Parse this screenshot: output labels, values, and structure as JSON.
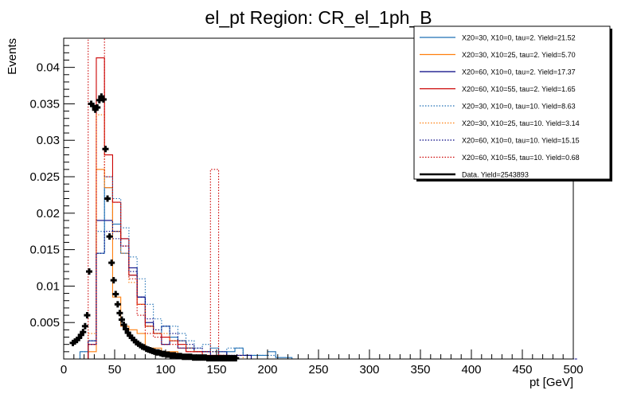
{
  "chart_data": {
    "type": "line",
    "title": "el_pt Region: CR_el_1ph_B",
    "xlabel": "pt [GeV]",
    "ylabel": "Events",
    "xlim": [
      0,
      500
    ],
    "ylim": [
      0,
      0.044
    ],
    "x_ticks": [
      0,
      50,
      100,
      150,
      200,
      250,
      300,
      350,
      400,
      450,
      500
    ],
    "x_tick_labels": [
      "0",
      "50",
      "100",
      "150",
      "200",
      "250",
      "300",
      "350",
      "400",
      "450",
      "500"
    ],
    "y_ticks": [
      0.005,
      0.01,
      0.015,
      0.02,
      0.025,
      0.03,
      0.035,
      0.04
    ],
    "y_tick_labels": [
      "0.005",
      "0.01",
      "0.015",
      "0.02",
      "0.025",
      "0.03",
      "0.035",
      "0.04"
    ],
    "bin_width": 8,
    "legend_position": "top-right",
    "series": [
      {
        "name": "X20=30, X10=0, tau=2. Yield=21.52",
        "color": "#1f6fb4",
        "style": "solid",
        "values": [
          0,
          0,
          0.001,
          0.0025,
          0.0145,
          0.0235,
          0.0185,
          0.0145,
          0.0115,
          0.0085,
          0.0045,
          0.0035,
          0.0045,
          0.003,
          0.0025,
          0.0015,
          0.001,
          0.001,
          0.0015,
          0.0005,
          0.001,
          0.0015,
          0.0005,
          0.0005,
          0.0005,
          0.001,
          0.0002,
          0.0002,
          0,
          0,
          0,
          0,
          0,
          0,
          0,
          0,
          0,
          0,
          0,
          0,
          0,
          0,
          0,
          0,
          0,
          0,
          0,
          0,
          0,
          0,
          0,
          0,
          0,
          0,
          0,
          0,
          0,
          0,
          0,
          0,
          0,
          0,
          0
        ]
      },
      {
        "name": "X20=30, X10=25, tau=2. Yield=5.70",
        "color": "#ff7f0e",
        "style": "solid",
        "values": [
          0,
          0,
          0,
          0.001,
          0.026,
          0.0235,
          0.0085,
          0.0045,
          0.004,
          0.0035,
          0.0015,
          0.0015,
          0.001,
          0.001,
          0.0005,
          0.0005,
          0.0005,
          0.0005,
          0,
          0,
          0,
          0,
          0,
          0,
          0,
          0,
          0,
          0,
          0,
          0,
          0,
          0,
          0,
          0,
          0,
          0,
          0,
          0,
          0,
          0,
          0,
          0,
          0,
          0,
          0,
          0,
          0,
          0,
          0,
          0,
          0,
          0,
          0,
          0,
          0,
          0,
          0,
          0,
          0,
          0,
          0,
          0,
          0
        ]
      },
      {
        "name": "X20=60, X10=0, tau=2. Yield=17.37",
        "color": "#000080",
        "style": "solid",
        "values": [
          0,
          0,
          0,
          0.0025,
          0.019,
          0.019,
          0.0175,
          0.0165,
          0.0125,
          0.0085,
          0.005,
          0.0035,
          0.002,
          0.0025,
          0.0015,
          0.0015,
          0.001,
          0.001,
          0.0005,
          0.001,
          0.0005,
          0.0005,
          0.0005,
          0,
          0,
          0,
          0,
          0,
          0,
          0,
          0,
          0,
          0,
          0,
          0,
          0,
          0,
          0,
          0,
          0,
          0,
          0,
          0,
          0,
          0,
          0,
          0,
          0,
          0,
          0,
          0,
          0,
          0,
          0,
          0,
          0,
          0,
          0,
          0,
          0,
          0,
          0,
          0
        ]
      },
      {
        "name": "X20=60, X10=55, tau=2. Yield=1.65",
        "color": "#cc0000",
        "style": "solid",
        "values": [
          0,
          0,
          0,
          0.002,
          0.0413,
          0.028,
          0.0215,
          0.0165,
          0.0115,
          0.0075,
          0.0045,
          0.0035,
          0.003,
          0.0025,
          0.002,
          0.001,
          0.001,
          0.0005,
          0.0005,
          0.0005,
          0,
          0,
          0,
          0,
          0,
          0,
          0,
          0,
          0,
          0,
          0,
          0,
          0,
          0,
          0,
          0,
          0,
          0,
          0,
          0,
          0,
          0,
          0,
          0,
          0,
          0,
          0,
          0,
          0,
          0,
          0,
          0,
          0,
          0,
          0,
          0,
          0,
          0,
          0,
          0,
          0,
          0,
          0
        ]
      },
      {
        "name": "X20=30, X10=0, tau=10. Yield=8.63",
        "color": "#1f6fb4",
        "style": "dotted",
        "values": [
          0,
          0,
          0.001,
          0.0025,
          0.0175,
          0.025,
          0.022,
          0.018,
          0.014,
          0.011,
          0.0075,
          0.0055,
          0.0045,
          0.0045,
          0.0035,
          0.0025,
          0.0015,
          0.002,
          0.001,
          0.001,
          0.0015,
          0.0015,
          0.0005,
          0.0005,
          0.0005,
          0.0005,
          0,
          0,
          0,
          0,
          0,
          0,
          0,
          0,
          0,
          0,
          0,
          0,
          0,
          0,
          0,
          0,
          0,
          0,
          0,
          0,
          0,
          0,
          0,
          0,
          0,
          0,
          0,
          0,
          0,
          0,
          0,
          0,
          0,
          0,
          0,
          0,
          0
        ]
      },
      {
        "name": "X20=30, X10=25, tau=10. Yield=3.14",
        "color": "#ff7f0e",
        "style": "dotted",
        "values": [
          0,
          0,
          0,
          0.0035,
          0.0335,
          0.0235,
          0.0175,
          0.0145,
          0.0105,
          0.0075,
          0.0045,
          0.0035,
          0.0035,
          0.0025,
          0.0025,
          0.0015,
          0.001,
          0.001,
          0.001,
          0.0005,
          0.0005,
          0.0005,
          0,
          0,
          0,
          0,
          0,
          0,
          0,
          0,
          0,
          0,
          0,
          0,
          0,
          0,
          0,
          0,
          0,
          0,
          0,
          0,
          0,
          0,
          0,
          0,
          0,
          0,
          0,
          0,
          0,
          0,
          0,
          0,
          0,
          0,
          0,
          0,
          0,
          0,
          0,
          0,
          0
        ]
      },
      {
        "name": "X20=60, X10=0, tau=10. Yield=15.15",
        "color": "#000080",
        "style": "dotted",
        "values": [
          0,
          0,
          0,
          0.002,
          0.0145,
          0.0175,
          0.0165,
          0.0155,
          0.012,
          0.0085,
          0.0055,
          0.004,
          0.0045,
          0.0035,
          0.0025,
          0.002,
          0.0015,
          0.001,
          0.001,
          0.0005,
          0.0005,
          0.0005,
          0.0005,
          0,
          0,
          0,
          0,
          0,
          0,
          0,
          0,
          0,
          0,
          0,
          0,
          0,
          0,
          0,
          0,
          0,
          0,
          0,
          0,
          0,
          0,
          0,
          0,
          0,
          0,
          0,
          0,
          0,
          0,
          0,
          0,
          0,
          0,
          0,
          0,
          0,
          0,
          0,
          0,
          0
        ]
      },
      {
        "name": "X20=60, X10=55, tau=10. Yield=0.68",
        "color": "#cc0000",
        "style": "dotted",
        "values": [
          0,
          0,
          0,
          0.044,
          0.044,
          0.025,
          0.0215,
          0.0155,
          0.011,
          0.006,
          0.0035,
          0.003,
          0.002,
          0.002,
          0.0015,
          0.001,
          0.001,
          0.001,
          0.026,
          0.0005,
          0,
          0,
          0,
          0,
          0,
          0,
          0,
          0,
          0,
          0,
          0,
          0,
          0,
          0,
          0,
          0,
          0,
          0,
          0,
          0,
          0,
          0,
          0,
          0,
          0,
          0,
          0,
          0,
          0,
          0,
          0,
          0,
          0,
          0,
          0,
          0,
          0,
          0,
          0,
          0,
          0,
          0,
          0
        ]
      }
    ],
    "data_points": {
      "name": "Data. Yield=2543893",
      "color": "#000000",
      "x": [
        9,
        11,
        13,
        15,
        17,
        19,
        21,
        23,
        25,
        27,
        29,
        31,
        33,
        35,
        37,
        39,
        41,
        43,
        45,
        47,
        49,
        51,
        53,
        55,
        57,
        59,
        61,
        63,
        65,
        67,
        69,
        71,
        73,
        75,
        77,
        79,
        81,
        83,
        85,
        87,
        89,
        91,
        93,
        95,
        97,
        99,
        101,
        103,
        105,
        107,
        109,
        111,
        113,
        115,
        117,
        119,
        121,
        123,
        125,
        127,
        129,
        131,
        133,
        135,
        137,
        139,
        141,
        143,
        145,
        147,
        149,
        151,
        153,
        155,
        157,
        159,
        161,
        163,
        165,
        167,
        169
      ],
      "y": [
        0.0022,
        0.0024,
        0.0026,
        0.0029,
        0.0033,
        0.0037,
        0.0045,
        0.006,
        0.012,
        0.035,
        0.0347,
        0.0342,
        0.0345,
        0.0355,
        0.036,
        0.0356,
        0.0288,
        0.022,
        0.0168,
        0.0132,
        0.0108,
        0.0089,
        0.0075,
        0.0063,
        0.0054,
        0.0047,
        0.0041,
        0.0036,
        0.0032,
        0.0029,
        0.0026,
        0.0023,
        0.0021,
        0.0019,
        0.0017,
        0.0016,
        0.0014,
        0.0013,
        0.0012,
        0.0011,
        0.001,
        0.0009,
        0.0009,
        0.0008,
        0.0007,
        0.0007,
        0.0006,
        0.0006,
        0.0005,
        0.0005,
        0.0005,
        0.0004,
        0.0004,
        0.0004,
        0.0003,
        0.0003,
        0.0003,
        0.0003,
        0.0003,
        0.0002,
        0.0002,
        0.0002,
        0.0002,
        0.0002,
        0.0002,
        0.0002,
        0.0001,
        0.0001,
        0.0001,
        0.0001,
        0.0001,
        0.0001,
        0.0001,
        0.0001,
        0.0001,
        0.0001,
        0.0001,
        0.0001,
        0.0001,
        0.0001,
        0.0001
      ]
    }
  }
}
